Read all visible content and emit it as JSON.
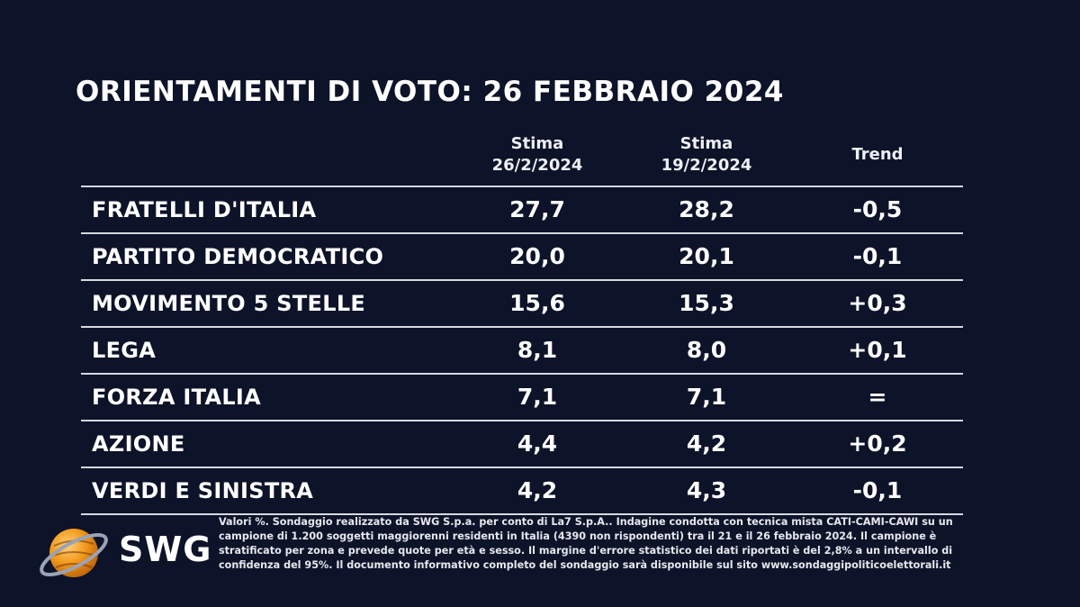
{
  "chart_data": {
    "type": "table",
    "title": "ORIENTAMENTI DI VOTO: 26 FEBBRAIO 2024",
    "columns": [
      {
        "line1": "Stima",
        "line2": "26/2/2024"
      },
      {
        "line1": "Stima",
        "line2": "19/2/2024"
      },
      {
        "line1": "Trend",
        "line2": ""
      }
    ],
    "rows": [
      {
        "party": "FRATELLI D'ITALIA",
        "cur": "27,7",
        "prev": "28,2",
        "trend": "-0,5"
      },
      {
        "party": "PARTITO DEMOCRATICO",
        "cur": "20,0",
        "prev": "20,1",
        "trend": "-0,1"
      },
      {
        "party": "MOVIMENTO 5 STELLE",
        "cur": "15,6",
        "prev": "15,3",
        "trend": "+0,3"
      },
      {
        "party": "LEGA",
        "cur": "8,1",
        "prev": "8,0",
        "trend": "+0,1"
      },
      {
        "party": "FORZA ITALIA",
        "cur": "7,1",
        "prev": "7,1",
        "trend": "="
      },
      {
        "party": "AZIONE",
        "cur": "4,4",
        "prev": "4,2",
        "trend": "+0,2"
      },
      {
        "party": "VERDI E SINISTRA",
        "cur": "4,2",
        "prev": "4,3",
        "trend": "-0,1"
      }
    ]
  },
  "logo": {
    "text": "SWG",
    "colors": {
      "sphere": "#f39a1e",
      "ring": "#9aa3b5"
    }
  },
  "note": "Valori %. Sondaggio realizzato da SWG S.p.a. per conto di La7 S.p.A.. Indagine condotta con tecnica mista CATI-CAMI-CAWI su un campione di 1.200 soggetti maggiorenni residenti in Italia (4390 non rispondenti) tra il 21 e il 26 febbraio 2024. Il campione è stratificato per zona e prevede quote per età e sesso. Il margine d'errore statistico dei dati riportati è del 2,8% a un intervallo di confidenza del 95%. Il documento informativo completo del sondaggio sarà disponibile sul sito www.sondaggipoliticoelettorali.it",
  "colors": {
    "background": "#0d1328",
    "text": "#ffffff",
    "rule": "#d6d9e0"
  }
}
